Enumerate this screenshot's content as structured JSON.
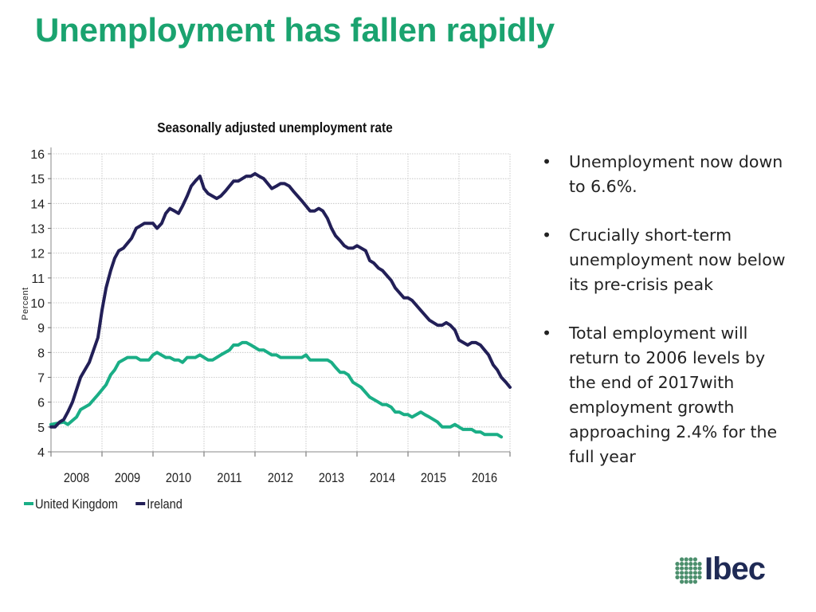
{
  "slide": {
    "title": "Unemployment has fallen rapidly"
  },
  "bullets": [
    "Unemployment now down to 6.6%.",
    "Crucially short-term unemployment now below its pre-crisis peak",
    "Total employment will return to 2006 levels by the end of 2017with employment growth approaching 2.4% for the full year"
  ],
  "logo": {
    "text": "Ibec",
    "icon": "ibec-globe-icon",
    "color": "#1f2a55",
    "icon_color": "#4c8f6d"
  },
  "chart_data": {
    "type": "line",
    "title": "Seasonally adjusted unemployment rate",
    "xlabel": "",
    "ylabel": "Percent",
    "xlim": [
      2007.75,
      2016.75
    ],
    "ylim": [
      4,
      16
    ],
    "yticks": [
      4,
      5,
      6,
      7,
      8,
      9,
      10,
      11,
      12,
      13,
      14,
      15,
      16
    ],
    "xticks": [
      "2008",
      "2009",
      "2010",
      "2011",
      "2012",
      "2013",
      "2014",
      "2015",
      "2016"
    ],
    "grid": true,
    "legend_position": "bottom-left",
    "series": [
      {
        "name": "United Kingdom",
        "color": "#1aae86",
        "points": [
          [
            2007.75,
            5.1
          ],
          [
            2008.0,
            5.2
          ],
          [
            2008.08,
            5.1
          ],
          [
            2008.25,
            5.4
          ],
          [
            2008.33,
            5.7
          ],
          [
            2008.5,
            5.9
          ],
          [
            2008.67,
            6.3
          ],
          [
            2008.83,
            6.7
          ],
          [
            2008.92,
            7.1
          ],
          [
            2009.0,
            7.3
          ],
          [
            2009.08,
            7.6
          ],
          [
            2009.25,
            7.8
          ],
          [
            2009.42,
            7.8
          ],
          [
            2009.5,
            7.7
          ],
          [
            2009.67,
            7.7
          ],
          [
            2009.75,
            7.9
          ],
          [
            2009.83,
            8.0
          ],
          [
            2010.0,
            7.8
          ],
          [
            2010.08,
            7.8
          ],
          [
            2010.17,
            7.7
          ],
          [
            2010.25,
            7.7
          ],
          [
            2010.33,
            7.6
          ],
          [
            2010.42,
            7.8
          ],
          [
            2010.58,
            7.8
          ],
          [
            2010.67,
            7.9
          ],
          [
            2010.75,
            7.8
          ],
          [
            2010.83,
            7.7
          ],
          [
            2010.92,
            7.7
          ],
          [
            2011.08,
            7.9
          ],
          [
            2011.25,
            8.1
          ],
          [
            2011.33,
            8.3
          ],
          [
            2011.42,
            8.3
          ],
          [
            2011.5,
            8.4
          ],
          [
            2011.58,
            8.4
          ],
          [
            2011.67,
            8.3
          ],
          [
            2011.83,
            8.1
          ],
          [
            2011.92,
            8.1
          ],
          [
            2012.0,
            8.0
          ],
          [
            2012.08,
            7.9
          ],
          [
            2012.17,
            7.9
          ],
          [
            2012.25,
            7.8
          ],
          [
            2012.5,
            7.8
          ],
          [
            2012.67,
            7.8
          ],
          [
            2012.75,
            7.9
          ],
          [
            2012.83,
            7.7
          ],
          [
            2013.0,
            7.7
          ],
          [
            2013.17,
            7.7
          ],
          [
            2013.25,
            7.6
          ],
          [
            2013.33,
            7.4
          ],
          [
            2013.42,
            7.2
          ],
          [
            2013.5,
            7.2
          ],
          [
            2013.58,
            7.1
          ],
          [
            2013.67,
            6.8
          ],
          [
            2013.83,
            6.6
          ],
          [
            2014.0,
            6.2
          ],
          [
            2014.17,
            6.0
          ],
          [
            2014.25,
            5.9
          ],
          [
            2014.33,
            5.9
          ],
          [
            2014.42,
            5.8
          ],
          [
            2014.5,
            5.6
          ],
          [
            2014.58,
            5.6
          ],
          [
            2014.67,
            5.5
          ],
          [
            2014.75,
            5.5
          ],
          [
            2014.83,
            5.4
          ],
          [
            2015.0,
            5.6
          ],
          [
            2015.08,
            5.5
          ],
          [
            2015.17,
            5.4
          ],
          [
            2015.33,
            5.2
          ],
          [
            2015.42,
            5.0
          ],
          [
            2015.58,
            5.0
          ],
          [
            2015.67,
            5.1
          ],
          [
            2015.83,
            4.9
          ],
          [
            2016.0,
            4.9
          ],
          [
            2016.08,
            4.8
          ],
          [
            2016.17,
            4.8
          ],
          [
            2016.25,
            4.7
          ],
          [
            2016.5,
            4.7
          ],
          [
            2016.58,
            4.6
          ]
        ]
      },
      {
        "name": "Ireland",
        "color": "#221f57",
        "points": [
          [
            2007.75,
            5.0
          ],
          [
            2007.83,
            5.0
          ],
          [
            2007.92,
            5.2
          ],
          [
            2008.0,
            5.3
          ],
          [
            2008.08,
            5.6
          ],
          [
            2008.17,
            6.0
          ],
          [
            2008.25,
            6.5
          ],
          [
            2008.33,
            7.0
          ],
          [
            2008.5,
            7.6
          ],
          [
            2008.67,
            8.6
          ],
          [
            2008.75,
            9.7
          ],
          [
            2008.83,
            10.6
          ],
          [
            2008.92,
            11.3
          ],
          [
            2009.0,
            11.8
          ],
          [
            2009.08,
            12.1
          ],
          [
            2009.17,
            12.2
          ],
          [
            2009.25,
            12.4
          ],
          [
            2009.33,
            12.6
          ],
          [
            2009.42,
            13.0
          ],
          [
            2009.5,
            13.1
          ],
          [
            2009.58,
            13.2
          ],
          [
            2009.75,
            13.2
          ],
          [
            2009.83,
            13.0
          ],
          [
            2009.92,
            13.2
          ],
          [
            2010.0,
            13.6
          ],
          [
            2010.08,
            13.8
          ],
          [
            2010.17,
            13.7
          ],
          [
            2010.25,
            13.6
          ],
          [
            2010.33,
            13.9
          ],
          [
            2010.42,
            14.3
          ],
          [
            2010.5,
            14.7
          ],
          [
            2010.58,
            14.9
          ],
          [
            2010.67,
            15.1
          ],
          [
            2010.75,
            14.6
          ],
          [
            2010.83,
            14.4
          ],
          [
            2011.0,
            14.2
          ],
          [
            2011.08,
            14.3
          ],
          [
            2011.17,
            14.5
          ],
          [
            2011.25,
            14.7
          ],
          [
            2011.33,
            14.9
          ],
          [
            2011.42,
            14.9
          ],
          [
            2011.5,
            15.0
          ],
          [
            2011.58,
            15.1
          ],
          [
            2011.67,
            15.1
          ],
          [
            2011.75,
            15.2
          ],
          [
            2011.83,
            15.1
          ],
          [
            2011.92,
            15.0
          ],
          [
            2012.0,
            14.8
          ],
          [
            2012.08,
            14.6
          ],
          [
            2012.17,
            14.7
          ],
          [
            2012.25,
            14.8
          ],
          [
            2012.33,
            14.8
          ],
          [
            2012.42,
            14.7
          ],
          [
            2012.5,
            14.5
          ],
          [
            2012.67,
            14.1
          ],
          [
            2012.83,
            13.7
          ],
          [
            2012.92,
            13.7
          ],
          [
            2013.0,
            13.8
          ],
          [
            2013.08,
            13.7
          ],
          [
            2013.17,
            13.4
          ],
          [
            2013.25,
            13.0
          ],
          [
            2013.33,
            12.7
          ],
          [
            2013.42,
            12.5
          ],
          [
            2013.5,
            12.3
          ],
          [
            2013.58,
            12.2
          ],
          [
            2013.67,
            12.2
          ],
          [
            2013.75,
            12.3
          ],
          [
            2013.92,
            12.1
          ],
          [
            2014.0,
            11.7
          ],
          [
            2014.08,
            11.6
          ],
          [
            2014.17,
            11.4
          ],
          [
            2014.25,
            11.3
          ],
          [
            2014.42,
            10.9
          ],
          [
            2014.5,
            10.6
          ],
          [
            2014.67,
            10.2
          ],
          [
            2014.75,
            10.2
          ],
          [
            2014.83,
            10.1
          ],
          [
            2015.0,
            9.7
          ],
          [
            2015.17,
            9.3
          ],
          [
            2015.33,
            9.1
          ],
          [
            2015.42,
            9.1
          ],
          [
            2015.5,
            9.2
          ],
          [
            2015.58,
            9.1
          ],
          [
            2015.67,
            8.9
          ],
          [
            2015.75,
            8.5
          ],
          [
            2015.92,
            8.3
          ],
          [
            2016.0,
            8.4
          ],
          [
            2016.08,
            8.4
          ],
          [
            2016.17,
            8.3
          ],
          [
            2016.25,
            8.1
          ],
          [
            2016.33,
            7.9
          ],
          [
            2016.42,
            7.5
          ],
          [
            2016.5,
            7.3
          ],
          [
            2016.58,
            7.0
          ],
          [
            2016.67,
            6.8
          ],
          [
            2016.75,
            6.6
          ]
        ]
      }
    ]
  }
}
